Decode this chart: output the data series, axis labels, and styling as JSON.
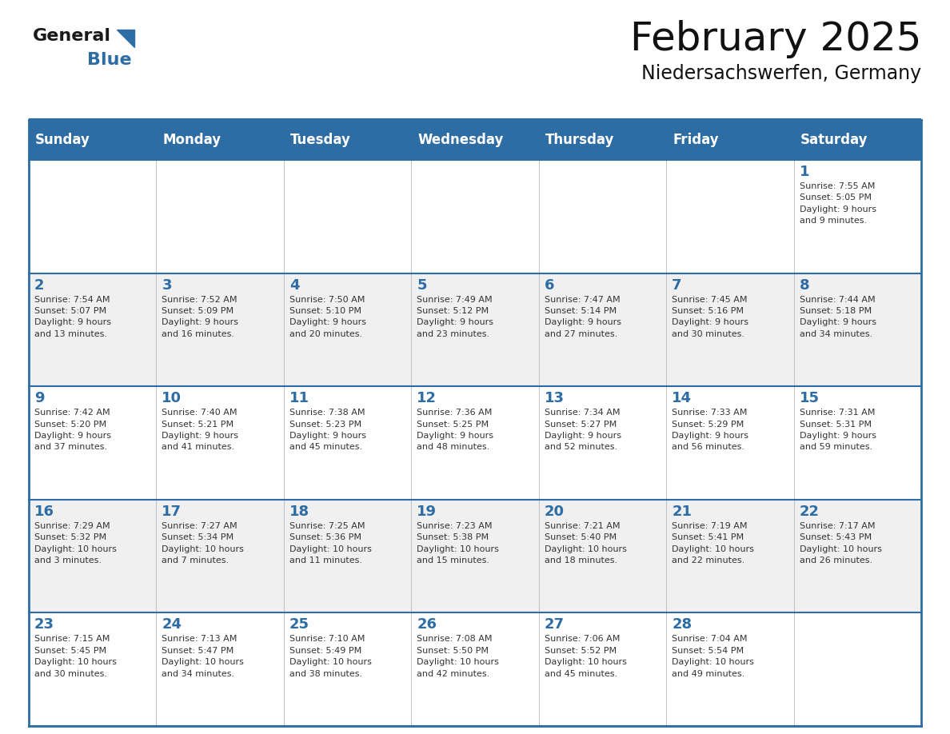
{
  "title": "February 2025",
  "subtitle": "Niedersachswerfen, Germany",
  "days_of_week": [
    "Sunday",
    "Monday",
    "Tuesday",
    "Wednesday",
    "Thursday",
    "Friday",
    "Saturday"
  ],
  "header_bg": "#2E6DA4",
  "header_text": "#FFFFFF",
  "cell_bg_odd": "#FFFFFF",
  "cell_bg_even": "#F0F0F0",
  "cell_text": "#333333",
  "day_number_color": "#2E6DA4",
  "border_color": "#2E6DA4",
  "logo_general_color": "#1a1a1a",
  "logo_blue_color": "#2E6DA4",
  "weeks": [
    {
      "days": [
        {
          "date": null,
          "info": null
        },
        {
          "date": null,
          "info": null
        },
        {
          "date": null,
          "info": null
        },
        {
          "date": null,
          "info": null
        },
        {
          "date": null,
          "info": null
        },
        {
          "date": null,
          "info": null
        },
        {
          "date": 1,
          "info": "Sunrise: 7:55 AM\nSunset: 5:05 PM\nDaylight: 9 hours\nand 9 minutes."
        }
      ]
    },
    {
      "days": [
        {
          "date": 2,
          "info": "Sunrise: 7:54 AM\nSunset: 5:07 PM\nDaylight: 9 hours\nand 13 minutes."
        },
        {
          "date": 3,
          "info": "Sunrise: 7:52 AM\nSunset: 5:09 PM\nDaylight: 9 hours\nand 16 minutes."
        },
        {
          "date": 4,
          "info": "Sunrise: 7:50 AM\nSunset: 5:10 PM\nDaylight: 9 hours\nand 20 minutes."
        },
        {
          "date": 5,
          "info": "Sunrise: 7:49 AM\nSunset: 5:12 PM\nDaylight: 9 hours\nand 23 minutes."
        },
        {
          "date": 6,
          "info": "Sunrise: 7:47 AM\nSunset: 5:14 PM\nDaylight: 9 hours\nand 27 minutes."
        },
        {
          "date": 7,
          "info": "Sunrise: 7:45 AM\nSunset: 5:16 PM\nDaylight: 9 hours\nand 30 minutes."
        },
        {
          "date": 8,
          "info": "Sunrise: 7:44 AM\nSunset: 5:18 PM\nDaylight: 9 hours\nand 34 minutes."
        }
      ]
    },
    {
      "days": [
        {
          "date": 9,
          "info": "Sunrise: 7:42 AM\nSunset: 5:20 PM\nDaylight: 9 hours\nand 37 minutes."
        },
        {
          "date": 10,
          "info": "Sunrise: 7:40 AM\nSunset: 5:21 PM\nDaylight: 9 hours\nand 41 minutes."
        },
        {
          "date": 11,
          "info": "Sunrise: 7:38 AM\nSunset: 5:23 PM\nDaylight: 9 hours\nand 45 minutes."
        },
        {
          "date": 12,
          "info": "Sunrise: 7:36 AM\nSunset: 5:25 PM\nDaylight: 9 hours\nand 48 minutes."
        },
        {
          "date": 13,
          "info": "Sunrise: 7:34 AM\nSunset: 5:27 PM\nDaylight: 9 hours\nand 52 minutes."
        },
        {
          "date": 14,
          "info": "Sunrise: 7:33 AM\nSunset: 5:29 PM\nDaylight: 9 hours\nand 56 minutes."
        },
        {
          "date": 15,
          "info": "Sunrise: 7:31 AM\nSunset: 5:31 PM\nDaylight: 9 hours\nand 59 minutes."
        }
      ]
    },
    {
      "days": [
        {
          "date": 16,
          "info": "Sunrise: 7:29 AM\nSunset: 5:32 PM\nDaylight: 10 hours\nand 3 minutes."
        },
        {
          "date": 17,
          "info": "Sunrise: 7:27 AM\nSunset: 5:34 PM\nDaylight: 10 hours\nand 7 minutes."
        },
        {
          "date": 18,
          "info": "Sunrise: 7:25 AM\nSunset: 5:36 PM\nDaylight: 10 hours\nand 11 minutes."
        },
        {
          "date": 19,
          "info": "Sunrise: 7:23 AM\nSunset: 5:38 PM\nDaylight: 10 hours\nand 15 minutes."
        },
        {
          "date": 20,
          "info": "Sunrise: 7:21 AM\nSunset: 5:40 PM\nDaylight: 10 hours\nand 18 minutes."
        },
        {
          "date": 21,
          "info": "Sunrise: 7:19 AM\nSunset: 5:41 PM\nDaylight: 10 hours\nand 22 minutes."
        },
        {
          "date": 22,
          "info": "Sunrise: 7:17 AM\nSunset: 5:43 PM\nDaylight: 10 hours\nand 26 minutes."
        }
      ]
    },
    {
      "days": [
        {
          "date": 23,
          "info": "Sunrise: 7:15 AM\nSunset: 5:45 PM\nDaylight: 10 hours\nand 30 minutes."
        },
        {
          "date": 24,
          "info": "Sunrise: 7:13 AM\nSunset: 5:47 PM\nDaylight: 10 hours\nand 34 minutes."
        },
        {
          "date": 25,
          "info": "Sunrise: 7:10 AM\nSunset: 5:49 PM\nDaylight: 10 hours\nand 38 minutes."
        },
        {
          "date": 26,
          "info": "Sunrise: 7:08 AM\nSunset: 5:50 PM\nDaylight: 10 hours\nand 42 minutes."
        },
        {
          "date": 27,
          "info": "Sunrise: 7:06 AM\nSunset: 5:52 PM\nDaylight: 10 hours\nand 45 minutes."
        },
        {
          "date": 28,
          "info": "Sunrise: 7:04 AM\nSunset: 5:54 PM\nDaylight: 10 hours\nand 49 minutes."
        },
        {
          "date": null,
          "info": null
        }
      ]
    }
  ]
}
